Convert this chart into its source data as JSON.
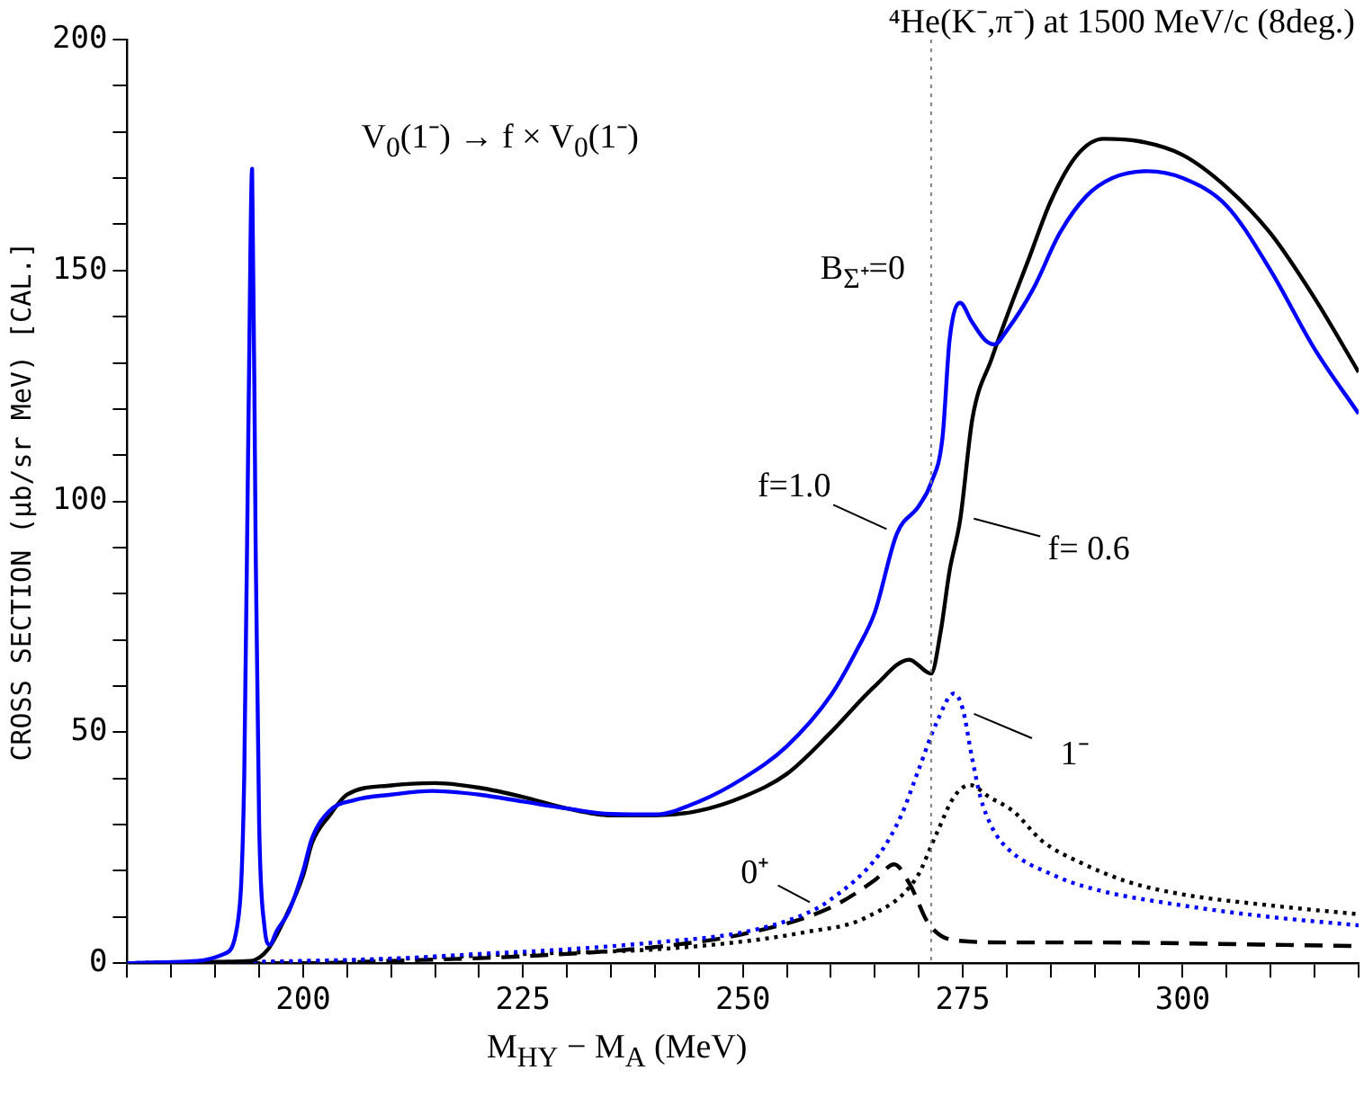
{
  "chart_data": {
    "type": "line",
    "title": "⁴He(K⁻,π⁻)  at 1500 MeV/c (8deg.)",
    "xlabel": "M$_{HY}$ − M$_{A}$ (MeV)",
    "ylabel": "CROSS SECTION (μb/sr MeV) [CAL.]",
    "xlim": [
      180,
      320
    ],
    "ylim": [
      0,
      200
    ],
    "xticks": [
      {
        "value": 180,
        "label": null
      },
      {
        "value": 185,
        "label": null
      },
      {
        "value": 190,
        "label": null
      },
      {
        "value": 195,
        "label": null
      },
      200,
      {
        "value": 205,
        "label": null
      },
      {
        "value": 210,
        "label": null
      },
      {
        "value": 215,
        "label": null
      },
      {
        "value": 220,
        "label": null
      },
      225,
      {
        "value": 230,
        "label": null
      },
      {
        "value": 235,
        "label": null
      },
      {
        "value": 240,
        "label": null
      },
      {
        "value": 245,
        "label": null
      },
      250,
      {
        "value": 255,
        "label": null
      },
      {
        "value": 260,
        "label": null
      },
      {
        "value": 265,
        "label": null
      },
      {
        "value": 270,
        "label": null
      },
      275,
      {
        "value": 280,
        "label": null
      },
      {
        "value": 285,
        "label": null
      },
      {
        "value": 290,
        "label": null
      },
      {
        "value": 295,
        "label": null
      },
      300,
      {
        "value": 305,
        "label": null
      },
      {
        "value": 310,
        "label": null
      },
      {
        "value": 315,
        "label": null
      },
      {
        "value": 320,
        "label": null
      }
    ],
    "yticks": [
      0,
      {
        "value": 10,
        "label": null
      },
      {
        "value": 20,
        "label": null
      },
      {
        "value": 30,
        "label": null
      },
      {
        "value": 40,
        "label": null
      },
      50,
      {
        "value": 60,
        "label": null
      },
      {
        "value": 70,
        "label": null
      },
      {
        "value": 80,
        "label": null
      },
      {
        "value": 90,
        "label": null
      },
      100,
      {
        "value": 110,
        "label": null
      },
      {
        "value": 120,
        "label": null
      },
      {
        "value": 130,
        "label": null
      },
      {
        "value": 140,
        "label": null
      },
      150,
      {
        "value": 160,
        "label": null
      },
      {
        "value": 170,
        "label": null
      },
      {
        "value": 180,
        "label": null
      },
      {
        "value": 190,
        "label": null
      },
      200
    ],
    "grid": false,
    "legend": false,
    "marker": "none",
    "series": [
      {
        "color": "#0000ff",
        "line_style": "solid",
        "x": [
          180,
          188,
          191,
          192.5,
          193.3,
          193.8,
          194.2,
          194.6,
          195,
          195.6,
          196.2,
          197,
          198.4,
          200,
          201,
          203,
          205.8,
          210,
          214.7,
          220,
          225,
          230,
          235,
          240,
          245,
          250,
          255,
          260,
          263,
          265,
          267.5,
          270,
          271.4,
          272.7,
          273.5,
          274.7,
          276,
          277.5,
          278.6,
          280,
          283,
          286,
          289,
          292,
          296,
          300,
          305,
          310,
          315,
          320
        ],
        "values": [
          0,
          0.5,
          2,
          8,
          40,
          120,
          172,
          90,
          30,
          8,
          4,
          7,
          11.3,
          20,
          27,
          33,
          35.3,
          36.5,
          37.3,
          36.5,
          35,
          33.5,
          32.3,
          32.2,
          35,
          40,
          47,
          58,
          68,
          76,
          93,
          99,
          104,
          114,
          135,
          143,
          139,
          135,
          134,
          137,
          146,
          158,
          166,
          170,
          171.5,
          170,
          164,
          150,
          133,
          119
        ]
      },
      {
        "color": "#000000",
        "line_style": "solid",
        "x": [
          180,
          190,
          194,
          196,
          198,
          200,
          201,
          203,
          205,
          210,
          215,
          220,
          225,
          230,
          235,
          240,
          245,
          250,
          255,
          260,
          265,
          268.9,
          271.4,
          272.5,
          273.5,
          274.7,
          276.1,
          278.3,
          280,
          282.6,
          285,
          288,
          291,
          295,
          300,
          305,
          310,
          315,
          320
        ],
        "values": [
          0,
          0.3,
          0.5,
          3,
          10,
          19,
          26,
          32,
          36.5,
          38.5,
          39,
          38,
          36,
          33.5,
          32,
          32,
          33,
          36,
          41,
          50,
          60,
          65.7,
          62.7,
          72,
          85,
          96,
          118,
          131,
          140,
          153,
          165,
          175,
          178.5,
          178,
          175,
          168,
          158,
          144,
          128
        ]
      },
      {
        "color": "#0000ff",
        "line_style": "dotted",
        "x": [
          180,
          200,
          210,
          220,
          230,
          240,
          250,
          257,
          260,
          265.5,
          268,
          270,
          272,
          274,
          275,
          276,
          277,
          278.3,
          280,
          285.4,
          290,
          300,
          310,
          320
        ],
        "values": [
          0,
          0.5,
          1,
          2,
          3,
          4.5,
          6.7,
          10.6,
          13.8,
          23.6,
          32,
          42,
          52,
          58.4,
          55,
          45,
          36,
          29.5,
          25,
          19,
          16,
          12.5,
          10,
          8.2
        ]
      },
      {
        "color": "#000000",
        "line_style": "dotted",
        "x": [
          180,
          200,
          225,
          240,
          250,
          257,
          264,
          269.7,
          272,
          274,
          275.8,
          278,
          280.8,
          284,
          288.6,
          294,
          299.7,
          310,
          320
        ],
        "values": [
          0,
          0.3,
          2,
          3,
          4.7,
          6.7,
          9.9,
          18.4,
          28,
          36,
          38.6,
          36,
          32.8,
          26.5,
          21.6,
          17.5,
          15,
          12.5,
          10.6
        ]
      },
      {
        "color": "#000000",
        "line_style": "dashed",
        "x": [
          180,
          200,
          210,
          225,
          240,
          250,
          259.8,
          265,
          267.2,
          269,
          271.1,
          273.9,
          280,
          290,
          300,
          310,
          320
        ],
        "values": [
          0,
          0,
          0.5,
          1.5,
          3.5,
          6.3,
          11.9,
          18,
          21.4,
          17,
          8.6,
          5,
          4.5,
          4.5,
          4.3,
          4,
          3.7
        ]
      }
    ],
    "ref_lines": [
      {
        "axis": "x",
        "value": 271.4,
        "color": "#808080",
        "line_style": "dotted"
      }
    ],
    "annotations": [
      "V$_{0}$(1⁻) → f × V$_{0}$(1⁻)",
      {
        "text": "B$_{Σ⁺}$=0",
        "x": 271.4,
        "y": 150
      },
      {
        "text": "f=1.0",
        "x": 267.5,
        "y": 93
      },
      {
        "text": "f= 0.6",
        "x": 274.8,
        "y": 97
      },
      {
        "text": "1⁻",
        "x": 275,
        "y": 55
      },
      {
        "text": "0⁺",
        "x": 258.3,
        "y": 12.5
      }
    ]
  }
}
